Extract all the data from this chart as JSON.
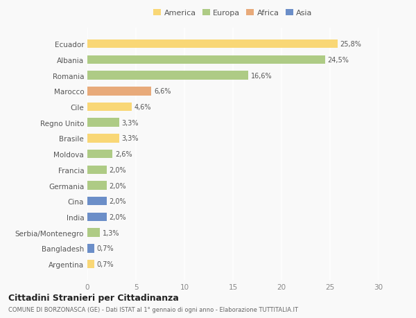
{
  "countries": [
    "Ecuador",
    "Albania",
    "Romania",
    "Marocco",
    "Cile",
    "Regno Unito",
    "Brasile",
    "Moldova",
    "Francia",
    "Germania",
    "Cina",
    "India",
    "Serbia/Montenegro",
    "Bangladesh",
    "Argentina"
  ],
  "values": [
    25.8,
    24.5,
    16.6,
    6.6,
    4.6,
    3.3,
    3.3,
    2.6,
    2.0,
    2.0,
    2.0,
    2.0,
    1.3,
    0.7,
    0.7
  ],
  "labels": [
    "25,8%",
    "24,5%",
    "16,6%",
    "6,6%",
    "4,6%",
    "3,3%",
    "3,3%",
    "2,6%",
    "2,0%",
    "2,0%",
    "2,0%",
    "2,0%",
    "1,3%",
    "0,7%",
    "0,7%"
  ],
  "continents": [
    "America",
    "Europa",
    "Europa",
    "Africa",
    "America",
    "Europa",
    "America",
    "Europa",
    "Europa",
    "Europa",
    "Asia",
    "Asia",
    "Europa",
    "Asia",
    "America"
  ],
  "colors": {
    "America": "#F9D776",
    "Europa": "#AECB85",
    "Africa": "#E8AA7A",
    "Asia": "#6B8EC8"
  },
  "legend_order": [
    "America",
    "Europa",
    "Africa",
    "Asia"
  ],
  "title": "Cittadini Stranieri per Cittadinanza",
  "subtitle": "COMUNE DI BORZONASCA (GE) - Dati ISTAT al 1° gennaio di ogni anno - Elaborazione TUTTITALIA.IT",
  "xlim": [
    0,
    30
  ],
  "xticks": [
    0,
    5,
    10,
    15,
    20,
    25,
    30
  ],
  "background_color": "#f9f9f9",
  "grid_color": "#ffffff"
}
